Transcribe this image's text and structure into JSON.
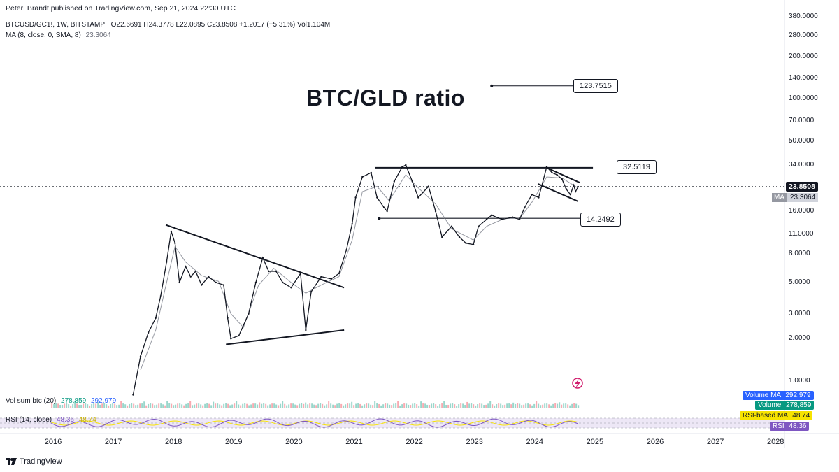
{
  "header": {
    "published_by": "PeterLBrandt published on TradingView.com, Sep 21, 2024 22:30 UTC",
    "symbol": "BTCUSD/GC1!, 1W, BITSTAMP",
    "ohlc": "O22.6691  H24.3778  L22.0895  C23.8508  +1.2017 (+5.31%)  Vol1.104M",
    "ma_label": "MA (8, close, 0, SMA, 8)",
    "ma_value": "23.3064"
  },
  "chart_data": {
    "type": "line",
    "title": "BTC/GLD ratio",
    "y_scale": "log",
    "ylim": [
      0.7,
      400
    ],
    "xlim": [
      "2015-06-01",
      "2028-06-01"
    ],
    "x_ticks": [
      "2016",
      "2017",
      "2018",
      "2019",
      "2020",
      "2021",
      "2022",
      "2023",
      "2024",
      "2025",
      "2026",
      "2027",
      "2028"
    ],
    "y_ticks": [
      "380.0000",
      "280.0000",
      "200.0000",
      "140.0000",
      "100.0000",
      "70.0000",
      "50.0000",
      "34.0000",
      "16.0000",
      "11.0000",
      "8.0000",
      "5.0000",
      "3.0000",
      "2.0000",
      "1.0000"
    ],
    "series": [
      {
        "name": "BTCUSD/GC1!",
        "color": "#131722",
        "points": [
          [
            "2017-05-01",
            0.8
          ],
          [
            "2017-06-15",
            1.5
          ],
          [
            "2017-08-01",
            2.2
          ],
          [
            "2017-09-15",
            2.8
          ],
          [
            "2017-10-15",
            4.0
          ],
          [
            "2017-11-20",
            7.0
          ],
          [
            "2017-12-18",
            11.5
          ],
          [
            "2018-01-10",
            9.5
          ],
          [
            "2018-02-06",
            5.0
          ],
          [
            "2018-03-15",
            6.5
          ],
          [
            "2018-04-15",
            5.5
          ],
          [
            "2018-05-15",
            6.0
          ],
          [
            "2018-06-20",
            4.8
          ],
          [
            "2018-08-01",
            5.5
          ],
          [
            "2018-09-15",
            5.0
          ],
          [
            "2018-11-01",
            4.8
          ],
          [
            "2018-11-25",
            2.8
          ],
          [
            "2018-12-15",
            2.0
          ],
          [
            "2019-02-01",
            2.1
          ],
          [
            "2019-04-01",
            3.0
          ],
          [
            "2019-05-15",
            5.0
          ],
          [
            "2019-06-26",
            7.5
          ],
          [
            "2019-08-01",
            6.0
          ],
          [
            "2019-09-15",
            6.0
          ],
          [
            "2019-10-25",
            5.0
          ],
          [
            "2019-12-15",
            4.6
          ],
          [
            "2020-02-10",
            5.8
          ],
          [
            "2020-03-13",
            2.3
          ],
          [
            "2020-04-15",
            4.3
          ],
          [
            "2020-06-15",
            5.5
          ],
          [
            "2020-08-15",
            5.3
          ],
          [
            "2020-10-01",
            5.8
          ],
          [
            "2020-11-15",
            8.5
          ],
          [
            "2020-12-20",
            13.0
          ],
          [
            "2021-01-10",
            20.0
          ],
          [
            "2021-02-20",
            28.0
          ],
          [
            "2021-04-14",
            30.0
          ],
          [
            "2021-05-20",
            20.0
          ],
          [
            "2021-07-01",
            17.0
          ],
          [
            "2021-07-20",
            16.0
          ],
          [
            "2021-09-01",
            26.0
          ],
          [
            "2021-10-20",
            33.0
          ],
          [
            "2021-11-10",
            34.0
          ],
          [
            "2021-12-20",
            26.0
          ],
          [
            "2022-01-25",
            20.0
          ],
          [
            "2022-03-28",
            24.0
          ],
          [
            "2022-05-10",
            16.0
          ],
          [
            "2022-06-18",
            10.5
          ],
          [
            "2022-08-15",
            12.5
          ],
          [
            "2022-10-01",
            10.5
          ],
          [
            "2022-11-10",
            9.5
          ],
          [
            "2022-12-25",
            9.3
          ],
          [
            "2023-01-25",
            12.5
          ],
          [
            "2023-03-15",
            14.0
          ],
          [
            "2023-04-15",
            15.0
          ],
          [
            "2023-06-15",
            14.0
          ],
          [
            "2023-08-20",
            14.5
          ],
          [
            "2023-10-01",
            14.0
          ],
          [
            "2023-11-01",
            17.0
          ],
          [
            "2023-12-15",
            21.0
          ],
          [
            "2024-01-25",
            20.0
          ],
          [
            "2024-03-14",
            33.0
          ],
          [
            "2024-04-15",
            30.0
          ],
          [
            "2024-05-15",
            29.0
          ],
          [
            "2024-06-15",
            27.0
          ],
          [
            "2024-07-10",
            23.0
          ],
          [
            "2024-08-05",
            21.0
          ],
          [
            "2024-08-25",
            24.5
          ],
          [
            "2024-09-05",
            22.0
          ],
          [
            "2024-09-21",
            23.85
          ]
        ]
      },
      {
        "name": "MA (8, close, 0, SMA, 8)",
        "color": "#6a6d78",
        "points": [
          [
            "2017-06-15",
            1.2
          ],
          [
            "2017-09-15",
            2.3
          ],
          [
            "2017-11-20",
            5.0
          ],
          [
            "2018-01-10",
            9.0
          ],
          [
            "2018-03-15",
            7.0
          ],
          [
            "2018-06-20",
            5.6
          ],
          [
            "2018-10-01",
            5.1
          ],
          [
            "2018-12-15",
            3.0
          ],
          [
            "2019-03-01",
            2.4
          ],
          [
            "2019-06-01",
            4.8
          ],
          [
            "2019-09-01",
            6.3
          ],
          [
            "2019-12-15",
            5.0
          ],
          [
            "2020-03-13",
            4.2
          ],
          [
            "2020-06-15",
            4.8
          ],
          [
            "2020-10-01",
            5.5
          ],
          [
            "2020-12-20",
            10.0
          ],
          [
            "2021-02-20",
            22.0
          ],
          [
            "2021-05-20",
            24.0
          ],
          [
            "2021-08-01",
            19.0
          ],
          [
            "2021-11-10",
            29.0
          ],
          [
            "2022-02-01",
            23.0
          ],
          [
            "2022-05-10",
            18.0
          ],
          [
            "2022-08-15",
            12.0
          ],
          [
            "2022-12-25",
            10.0
          ],
          [
            "2023-03-15",
            12.5
          ],
          [
            "2023-07-01",
            14.2
          ],
          [
            "2023-10-01",
            14.2
          ],
          [
            "2023-12-15",
            18.5
          ],
          [
            "2024-03-14",
            28.0
          ],
          [
            "2024-06-15",
            27.5
          ],
          [
            "2024-09-21",
            23.31
          ]
        ]
      }
    ],
    "annotations": [
      {
        "type": "trendline",
        "from": [
          "2017-11-15",
          12.8
        ],
        "to": [
          "2020-11-01",
          4.6
        ]
      },
      {
        "type": "trendline",
        "from": [
          "2018-11-15",
          1.82
        ],
        "to": [
          "2020-11-01",
          2.3
        ]
      },
      {
        "type": "hline",
        "from": [
          "2021-05-10",
          32.51
        ],
        "to": [
          "2024-12-20",
          32.51
        ],
        "label": "32.5119"
      },
      {
        "type": "hline",
        "from": [
          "2021-06-01",
          14.25
        ],
        "to": [
          "2024-10-20",
          14.25
        ],
        "label": "14.2492"
      },
      {
        "type": "trendline",
        "from": [
          "2024-03-14",
          32.5
        ],
        "to": [
          "2024-10-01",
          25.5
        ]
      },
      {
        "type": "trendline",
        "from": [
          "2024-01-20",
          25.0
        ],
        "to": [
          "2024-09-20",
          18.8
        ]
      },
      {
        "type": "target",
        "at": [
          "2023-04-15",
          123.75
        ],
        "label": "123.7515"
      },
      {
        "type": "hline-dotted",
        "value": 23.8508
      }
    ],
    "grid": false
  },
  "price_scale": {
    "last_label": "23.8508",
    "ma_tag": "MA",
    "ma_label": "23.3064"
  },
  "indicators": {
    "volume": {
      "label": "Vol sum btc (20)",
      "value1": "278,859",
      "value2": "292,979",
      "badge_ma_label": "Volume MA",
      "badge_ma_value": "292,979",
      "badge_vol_label": "Volume",
      "badge_vol_value": "278,859"
    },
    "rsi": {
      "label": "RSI (14, close)",
      "value1": "48.36",
      "value2": "48.74",
      "badge_ma_label": "RSI-based MA",
      "badge_ma_value": "48.74",
      "badge_rsi_label": "RSI",
      "badge_rsi_value": "48.36"
    }
  },
  "footer": {
    "brand": "TradingView"
  },
  "colors": {
    "text": "#131722",
    "muted": "#6a6d78",
    "ma_gray": "#9598a1",
    "volume_blue": "#2962ff",
    "volume_green": "#089981",
    "rsi_purple": "#7e57c2",
    "rsi_yellow": "#f7e300",
    "price_label_bg": "#131722"
  }
}
